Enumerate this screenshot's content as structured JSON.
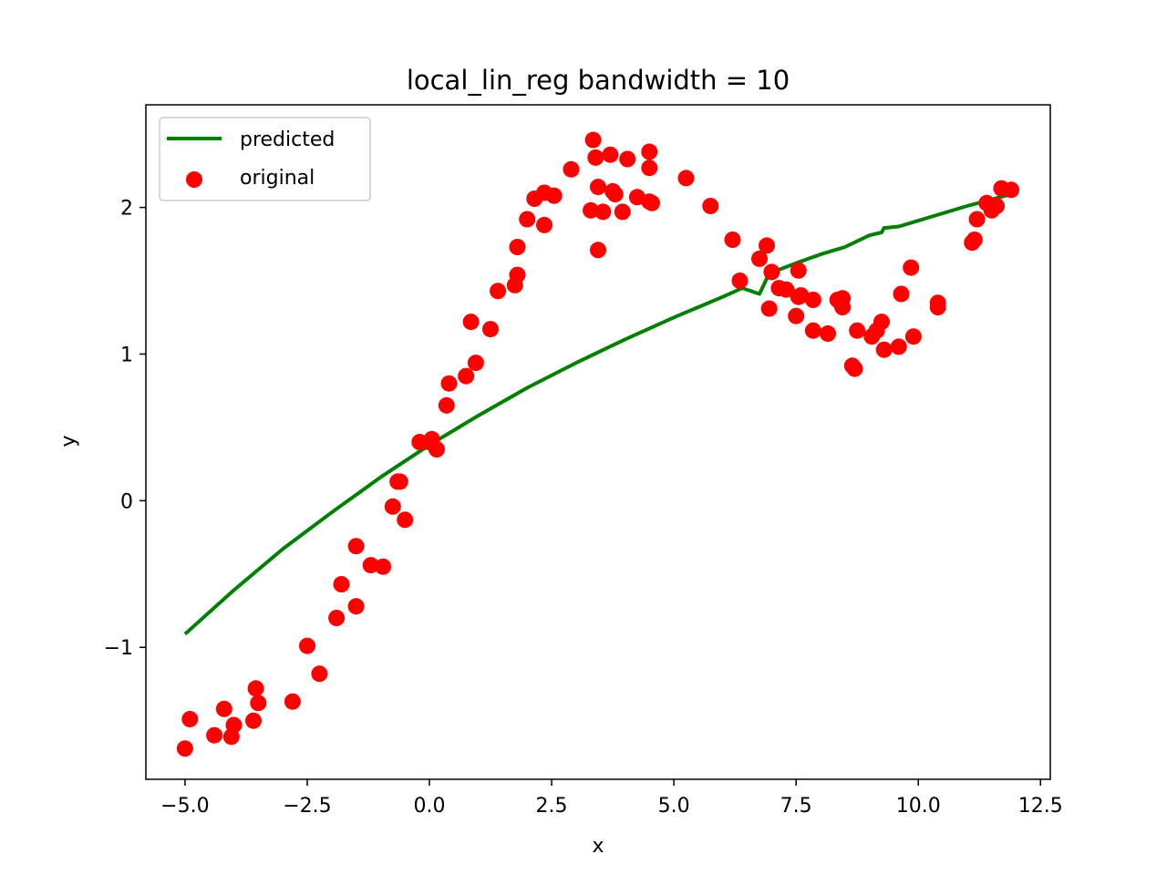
{
  "chart_data": {
    "type": "scatter",
    "title": "local_lin_reg bandwidth = 10",
    "xlabel": "x",
    "ylabel": "y",
    "xlim": [
      -5.8,
      12.7
    ],
    "ylim": [
      -1.9,
      2.7
    ],
    "xticks": [
      -5.0,
      -2.5,
      0.0,
      2.5,
      5.0,
      7.5,
      10.0,
      12.5
    ],
    "xtick_labels": [
      "−5.0",
      "−2.5",
      "0.0",
      "2.5",
      "5.0",
      "7.5",
      "10.0",
      "12.5"
    ],
    "yticks": [
      -1,
      0,
      1,
      2
    ],
    "ytick_labels": [
      "−1",
      "0",
      "1",
      "2"
    ],
    "grid": false,
    "legend_position": "top-left",
    "colors": {
      "predicted": "#008000",
      "original": "#ff0000"
    },
    "series": [
      {
        "name": "predicted",
        "kind": "line",
        "x": [
          -5.0,
          -4.0,
          -3.0,
          -2.0,
          -1.0,
          0.0,
          1.0,
          2.0,
          3.0,
          4.0,
          5.0,
          6.0,
          6.4,
          6.75,
          6.95,
          7.5,
          8.0,
          8.5,
          9.0,
          9.25,
          9.3,
          9.6,
          10.0,
          11.0,
          11.9
        ],
        "y": [
          -0.91,
          -0.61,
          -0.33,
          -0.08,
          0.16,
          0.38,
          0.58,
          0.77,
          0.94,
          1.1,
          1.25,
          1.39,
          1.45,
          1.41,
          1.55,
          1.62,
          1.68,
          1.73,
          1.81,
          1.83,
          1.86,
          1.87,
          1.91,
          2.01,
          2.09
        ]
      },
      {
        "name": "original",
        "kind": "scatter",
        "x": [
          -5.0,
          -4.9,
          -4.4,
          -4.2,
          -4.05,
          -4.0,
          -3.6,
          -3.55,
          -3.5,
          -2.8,
          -2.5,
          -2.25,
          -1.9,
          -1.8,
          -1.5,
          -1.5,
          -1.2,
          -0.95,
          -0.75,
          -0.65,
          -0.6,
          -0.5,
          -0.2,
          0.0,
          0.05,
          0.15,
          0.35,
          0.4,
          0.75,
          0.85,
          0.95,
          1.25,
          1.4,
          1.75,
          1.8,
          1.8,
          2.0,
          2.15,
          2.35,
          2.35,
          2.55,
          2.9,
          3.3,
          3.35,
          3.4,
          3.45,
          3.45,
          3.55,
          3.7,
          3.75,
          3.8,
          3.95,
          4.05,
          4.25,
          4.5,
          4.5,
          4.5,
          4.55,
          5.25,
          5.75,
          6.2,
          6.35,
          6.75,
          6.9,
          6.95,
          7.0,
          7.15,
          7.3,
          7.5,
          7.55,
          7.6,
          7.55,
          7.85,
          7.85,
          8.15,
          8.35,
          8.45,
          8.45,
          8.65,
          8.7,
          8.75,
          9.05,
          9.15,
          9.25,
          9.3,
          9.6,
          9.65,
          9.85,
          9.9,
          10.4,
          10.4,
          11.1,
          11.15,
          11.2,
          11.4,
          11.5,
          11.6,
          11.7,
          11.9
        ],
        "y": [
          -1.69,
          -1.49,
          -1.6,
          -1.42,
          -1.61,
          -1.53,
          -1.5,
          -1.28,
          -1.38,
          -1.37,
          -0.99,
          -1.18,
          -0.8,
          -0.57,
          -0.72,
          -0.31,
          -0.44,
          -0.45,
          -0.04,
          0.13,
          0.13,
          -0.13,
          0.4,
          0.4,
          0.42,
          0.35,
          0.65,
          0.8,
          0.85,
          1.22,
          0.94,
          1.17,
          1.43,
          1.47,
          1.54,
          1.73,
          1.92,
          2.06,
          2.1,
          1.88,
          2.08,
          2.26,
          1.98,
          2.46,
          2.34,
          2.14,
          1.71,
          1.97,
          2.36,
          2.11,
          2.09,
          1.97,
          2.33,
          2.07,
          2.38,
          2.27,
          2.04,
          2.03,
          2.2,
          2.01,
          1.78,
          1.5,
          1.65,
          1.74,
          1.31,
          1.56,
          1.45,
          1.44,
          1.26,
          1.39,
          1.4,
          1.57,
          1.16,
          1.37,
          1.14,
          1.37,
          1.38,
          1.32,
          0.92,
          0.9,
          1.16,
          1.12,
          1.16,
          1.22,
          1.03,
          1.05,
          1.41,
          1.59,
          1.12,
          1.32,
          1.35,
          1.76,
          1.78,
          1.92,
          2.03,
          1.98,
          2.01,
          2.13,
          2.12
        ]
      }
    ]
  }
}
